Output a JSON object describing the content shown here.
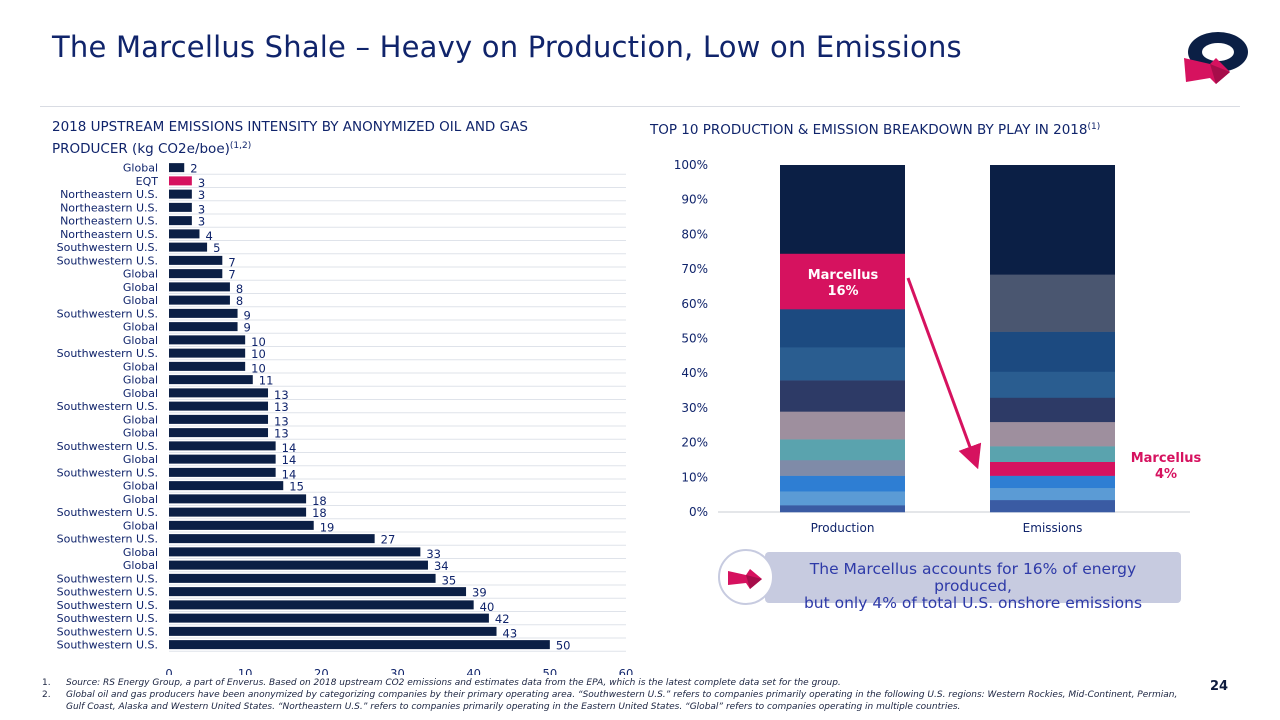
{
  "title": "The Marcellus Shale – Heavy on Production, Low on Emissions",
  "left_header": {
    "line1": "2018 UPSTREAM EMISSIONS INTENSITY BY ANONYMIZED OIL AND GAS",
    "line2": "PRODUCER (kg CO2e/boe)",
    "sup": "(1,2)"
  },
  "right_header": {
    "text": "TOP 10 PRODUCTION & EMISSION BREAKDOWN BY PLAY IN 2018",
    "sup": "(1)"
  },
  "chart_data": [
    {
      "type": "bar",
      "orientation": "horizontal",
      "title": "2018 UPSTREAM EMISSIONS INTENSITY BY ANONYMIZED OIL AND GAS PRODUCER (kg CO2e/boe)",
      "categories": [
        "Global",
        "EQT",
        "Northeastern U.S.",
        "Northeastern U.S.",
        "Northeastern U.S.",
        "Northeastern U.S.",
        "Southwestern U.S.",
        "Southwestern U.S.",
        "Global",
        "Global",
        "Global",
        "Southwestern U.S.",
        "Global",
        "Global",
        "Southwestern U.S.",
        "Global",
        "Global",
        "Global",
        "Southwestern U.S.",
        "Global",
        "Global",
        "Southwestern U.S.",
        "Global",
        "Southwestern U.S.",
        "Global",
        "Global",
        "Southwestern U.S.",
        "Global",
        "Southwestern U.S.",
        "Global",
        "Global",
        "Southwestern U.S.",
        "Southwestern U.S.",
        "Southwestern U.S.",
        "Southwestern U.S.",
        "Southwestern U.S.",
        "Southwestern U.S."
      ],
      "values": [
        2,
        3,
        3,
        3,
        3,
        4,
        5,
        7,
        7,
        8,
        8,
        9,
        9,
        10,
        10,
        10,
        11,
        13,
        13,
        13,
        13,
        14,
        14,
        14,
        15,
        18,
        18,
        19,
        27,
        33,
        34,
        35,
        39,
        40,
        42,
        43,
        50
      ],
      "highlight_index": 1,
      "colors": {
        "bar": "#0b1f45",
        "highlight": "#d6125f",
        "label": "#10246b"
      },
      "xlim": [
        0,
        60
      ],
      "xticks": [
        "0",
        "10",
        "20",
        "30",
        "40",
        "50",
        "60"
      ],
      "grid": "horizontal lines"
    },
    {
      "type": "stacked-bar",
      "title": "TOP 10 PRODUCTION & EMISSION BREAKDOWN BY PLAY IN 2018",
      "categories": [
        "Production",
        "Emissions"
      ],
      "ylim": [
        0,
        100
      ],
      "yticks": [
        "0%",
        "10%",
        "20%",
        "30%",
        "40%",
        "50%",
        "60%",
        "70%",
        "80%",
        "90%",
        "100%"
      ],
      "series": [
        {
          "color": "#3a5ba3",
          "values": [
            2,
            3.5
          ]
        },
        {
          "color": "#5b9bd5",
          "values": [
            4,
            3.5
          ]
        },
        {
          "color": "#2e7ed3",
          "values": [
            4.5,
            3.5
          ]
        },
        {
          "color": "#7f8ba8",
          "values": [
            4.5,
            0
          ]
        },
        {
          "name": "Marcellus",
          "color": "#d6125f",
          "values": [
            0,
            4
          ]
        },
        {
          "color": "#5aa3ae",
          "values": [
            6,
            4.5
          ]
        },
        {
          "color": "#9e8f9e",
          "values": [
            8,
            7
          ]
        },
        {
          "color": "#2d3a66",
          "values": [
            9,
            7
          ]
        },
        {
          "color": "#2a5d90",
          "values": [
            9.5,
            7.5
          ]
        },
        {
          "color": "#1c4a80",
          "values": [
            11,
            11.5
          ]
        },
        {
          "name": "Marcellus",
          "color": "#d6125f",
          "values": [
            16,
            0
          ]
        },
        {
          "color": "#4a5670",
          "values": [
            0,
            16.5
          ]
        },
        {
          "color": "#0b1f45",
          "values": [
            25.5,
            31.5
          ]
        }
      ],
      "annotations": [
        {
          "text_line1": "Marcellus",
          "text_line2": "16%",
          "bar": "Production"
        },
        {
          "text_line1": "Marcellus",
          "text_line2": "4%",
          "bar": "Emissions"
        }
      ]
    }
  ],
  "callout": {
    "line1": "The Marcellus accounts for 16% of energy produced,",
    "line2": "but only 4% of total U.S. onshore emissions",
    "icon": "arrow-logo-icon"
  },
  "footnotes": [
    {
      "num": "1.",
      "text": "Source: RS Energy Group, a part of Enverus. Based on 2018 upstream CO2 emissions and estimates data from the EPA, which is the latest complete data set for the group."
    },
    {
      "num": "2.",
      "text": "Global oil and gas producers have been anonymized by categorizing companies by their primary operating area. “Southwestern U.S.” refers to companies primarily operating in the following U.S. regions: Western Rockies, Mid-Continent, Permian, Gulf Coast, Alaska and Western United States. “Northeastern U.S.” refers to companies primarily operating in the Eastern United States. “Global” refers to companies operating in multiple countries."
    }
  ],
  "page_number": "24",
  "logo_icon": "company-logo-icon"
}
